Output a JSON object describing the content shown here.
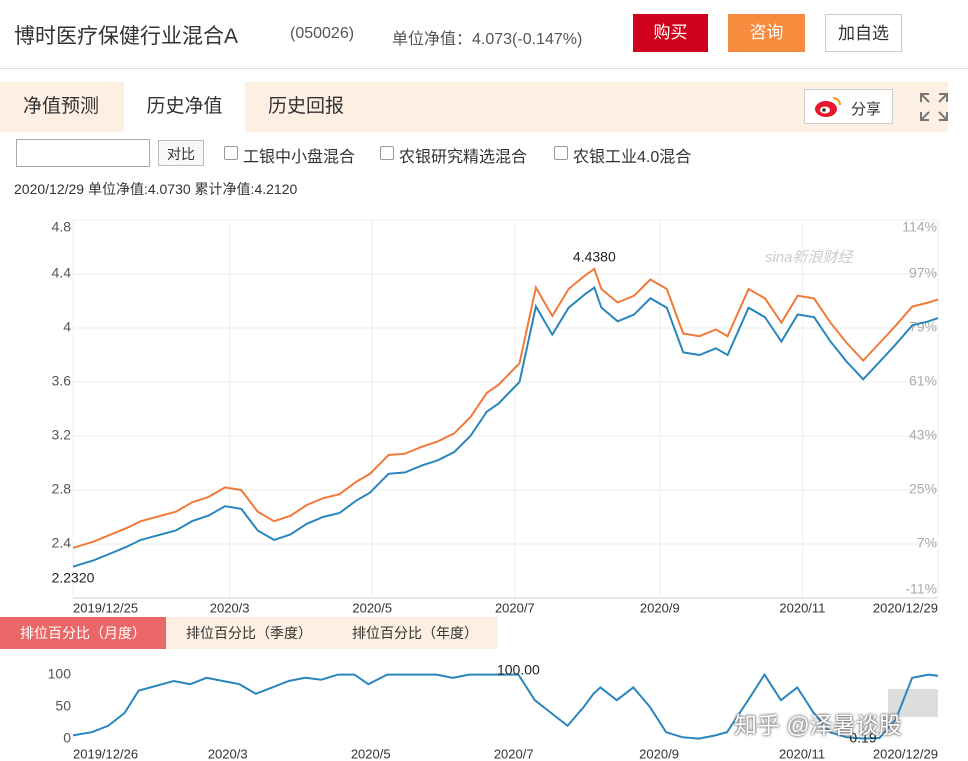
{
  "header": {
    "title": "博时医疗保健行业混合A",
    "code": "(050026)",
    "nav": "单位净值：4.073(-0.147%)",
    "buttons": [
      "购买",
      "咨询",
      "加自选"
    ]
  },
  "tabs": [
    "净值预测",
    "历史净值",
    "历史回报"
  ],
  "share": "分享",
  "compare": {
    "button": "对比",
    "options": [
      "工银中小盘混合",
      "农银研究精选混合",
      "农银工业4.0混合"
    ]
  },
  "info": "2020/12/29 单位净值:4.0730 累计净值:4.2120",
  "rank_tabs": [
    "排位百分比（月度）",
    "排位百分比（季度）",
    "排位百分比（年度）"
  ],
  "watermarks": [
    "sina新浪财经",
    "知乎 @泽暑谈股"
  ],
  "chart_data": [
    {
      "type": "line",
      "x": [
        "2019/12/25",
        "2020/1/3",
        "2020/1/10",
        "2020/1/17",
        "2020/1/23",
        "2020/2/7",
        "2020/2/14",
        "2020/2/21",
        "2020/2/28",
        "2020/3/6",
        "2020/3/13",
        "2020/3/20",
        "2020/3/27",
        "2020/4/3",
        "2020/4/10",
        "2020/4/17",
        "2020/4/24",
        "2020/4/30",
        "2020/5/8",
        "2020/5/15",
        "2020/5/22",
        "2020/5/29",
        "2020/6/5",
        "2020/6/12",
        "2020/6/19",
        "2020/6/24",
        "2020/7/3",
        "2020/7/10",
        "2020/7/17",
        "2020/7/24",
        "2020/7/31",
        "2020/8/4",
        "2020/8/7",
        "2020/8/14",
        "2020/8/21",
        "2020/8/28",
        "2020/9/4",
        "2020/9/11",
        "2020/9/18",
        "2020/9/25",
        "2020/9/30",
        "2020/10/9",
        "2020/10/16",
        "2020/10/23",
        "2020/10/30",
        "2020/11/6",
        "2020/11/13",
        "2020/11/20",
        "2020/11/27",
        "2020/12/4",
        "2020/12/11",
        "2020/12/18",
        "2020/12/25",
        "2020/12/29"
      ],
      "series": [
        {
          "color": "#2a86bd",
          "values": [
            2.232,
            2.28,
            2.33,
            2.38,
            2.43,
            2.5,
            2.57,
            2.61,
            2.68,
            2.66,
            2.5,
            2.43,
            2.47,
            2.55,
            2.6,
            2.63,
            2.72,
            2.78,
            2.92,
            2.93,
            2.98,
            3.02,
            3.08,
            3.2,
            3.38,
            3.44,
            3.6,
            4.16,
            3.95,
            4.15,
            4.25,
            4.299,
            4.15,
            4.05,
            4.1,
            4.22,
            4.15,
            3.82,
            3.8,
            3.85,
            3.8,
            4.15,
            4.08,
            3.9,
            4.1,
            4.08,
            3.9,
            3.75,
            3.62,
            3.75,
            3.88,
            4.02,
            4.05,
            4.073
          ],
          "value_labels": [
            "2.2320",
            null,
            null,
            null,
            null,
            null,
            null,
            null,
            null,
            null,
            null,
            null,
            null,
            null,
            null,
            null,
            null,
            null,
            null,
            null,
            null,
            null,
            null,
            null,
            null,
            null,
            null,
            null,
            null,
            null,
            null,
            null,
            null,
            null,
            null,
            null,
            null,
            null,
            null,
            null,
            null,
            null,
            null,
            null,
            null,
            null,
            null,
            null,
            null,
            null,
            null,
            null,
            null,
            null
          ]
        },
        {
          "color": "#f07a3a",
          "values": [
            2.371,
            2.419,
            2.469,
            2.519,
            2.569,
            2.639,
            2.709,
            2.749,
            2.819,
            2.799,
            2.639,
            2.569,
            2.609,
            2.689,
            2.739,
            2.769,
            2.859,
            2.919,
            3.059,
            3.069,
            3.119,
            3.159,
            3.219,
            3.339,
            3.519,
            3.579,
            3.739,
            4.299,
            4.089,
            4.289,
            4.389,
            4.438,
            4.289,
            4.189,
            4.239,
            4.359,
            4.289,
            3.959,
            3.939,
            3.989,
            3.939,
            4.289,
            4.219,
            4.039,
            4.239,
            4.219,
            4.039,
            3.889,
            3.759,
            3.889,
            4.019,
            4.159,
            4.189,
            4.212
          ],
          "value_labels": [
            null,
            null,
            null,
            null,
            null,
            null,
            null,
            null,
            null,
            null,
            null,
            null,
            null,
            null,
            null,
            null,
            null,
            null,
            null,
            null,
            null,
            null,
            null,
            null,
            null,
            null,
            null,
            null,
            null,
            null,
            null,
            "4.4380",
            null,
            null,
            null,
            null,
            null,
            null,
            null,
            null,
            null,
            null,
            null,
            null,
            null,
            null,
            null,
            null,
            null,
            null,
            null,
            null,
            null,
            null
          ]
        }
      ],
      "ylim": [
        2.0,
        4.8
      ],
      "yticks": [
        2.4,
        2.8,
        3.2,
        3.6,
        4,
        4.4,
        4.8
      ],
      "y2lim": [
        -11,
        115
      ],
      "y2ticks": [
        {
          "value": -11,
          "label": "-11%"
        },
        {
          "value": 7,
          "label": "7%"
        },
        {
          "value": 25,
          "label": "25%"
        },
        {
          "value": 43,
          "label": "43%"
        },
        {
          "value": 61,
          "label": "61%"
        },
        {
          "value": 79,
          "label": "79%"
        },
        {
          "value": 97,
          "label": "97%"
        },
        {
          "value": 114,
          "label": "114%"
        }
      ],
      "xticks": [
        "2019/12/25",
        "2020/3",
        "2020/5",
        "2020/7",
        "2020/9",
        "2020/11",
        "2020/12/29"
      ],
      "grid": true
    },
    {
      "type": "line",
      "x": [
        "2019/12/26",
        "2020/1/3",
        "2020/1/10",
        "2020/1/17",
        "2020/1/23",
        "2020/2/7",
        "2020/2/14",
        "2020/2/21",
        "2020/2/28",
        "2020/3/6",
        "2020/3/13",
        "2020/3/20",
        "2020/3/27",
        "2020/4/3",
        "2020/4/10",
        "2020/4/17",
        "2020/4/24",
        "2020/4/30",
        "2020/5/8",
        "2020/5/15",
        "2020/5/22",
        "2020/5/29",
        "2020/6/5",
        "2020/6/12",
        "2020/6/19",
        "2020/6/24",
        "2020/7/3",
        "2020/7/10",
        "2020/7/17",
        "2020/7/24",
        "2020/7/31",
        "2020/8/4",
        "2020/8/7",
        "2020/8/14",
        "2020/8/21",
        "2020/8/28",
        "2020/9/4",
        "2020/9/11",
        "2020/9/18",
        "2020/9/25",
        "2020/9/30",
        "2020/10/9",
        "2020/10/16",
        "2020/10/23",
        "2020/10/30",
        "2020/11/6",
        "2020/11/13",
        "2020/11/20",
        "2020/11/27",
        "2020/12/4",
        "2020/12/11",
        "2020/12/18",
        "2020/12/25",
        "2020/12/29"
      ],
      "series": [
        {
          "color": "#2a86bd",
          "values": [
            5,
            10,
            20,
            40,
            75,
            90,
            85,
            95,
            90,
            85,
            70,
            80,
            90,
            95,
            92,
            100,
            100,
            85,
            100,
            100,
            100,
            100,
            95,
            100,
            100,
            100,
            100,
            60,
            40,
            20,
            50,
            70,
            80,
            60,
            80,
            50,
            10,
            2,
            0,
            5,
            10,
            60,
            100,
            60,
            80,
            40,
            10,
            2,
            0.19,
            1,
            30,
            95,
            100,
            98
          ],
          "value_labels": [
            null,
            null,
            null,
            null,
            null,
            null,
            null,
            null,
            null,
            null,
            null,
            null,
            null,
            null,
            null,
            null,
            null,
            null,
            null,
            null,
            null,
            null,
            null,
            null,
            null,
            null,
            "100.00",
            null,
            null,
            null,
            null,
            null,
            null,
            null,
            null,
            null,
            null,
            null,
            null,
            null,
            null,
            null,
            null,
            null,
            null,
            null,
            null,
            null,
            "0.19",
            null,
            null,
            null,
            null,
            null
          ]
        }
      ],
      "ylim": [
        -10,
        115
      ],
      "yticks": [
        0,
        50,
        100
      ],
      "xticks": [
        "2019/12/26",
        "2020/3",
        "2020/5",
        "2020/7",
        "2020/9",
        "2020/11",
        "2020/12/29"
      ],
      "grid": false
    }
  ]
}
